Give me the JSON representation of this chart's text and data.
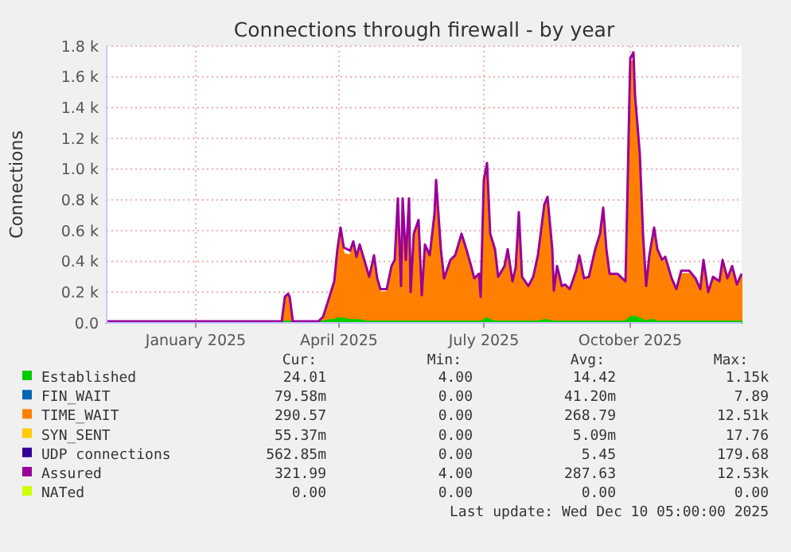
{
  "chart_data": {
    "type": "area",
    "title": "Connections through firewall - by year",
    "ylabel": "Connections",
    "grid": true,
    "legend": "bottom",
    "xlim": [
      "2024-11-06",
      "2025-12-10"
    ],
    "xticks": [
      {
        "value": "2025-01-01",
        "label": "January 2025"
      },
      {
        "value": "2025-04-01",
        "label": "April 2025"
      },
      {
        "value": "2025-07-01",
        "label": "July 2025"
      },
      {
        "value": "2025-10-01",
        "label": "October 2025"
      }
    ],
    "ylim": [
      0,
      1800
    ],
    "yticks": [
      {
        "value": 0,
        "label": "0.0"
      },
      {
        "value": 200,
        "label": "0.2 k"
      },
      {
        "value": 400,
        "label": "0.4 k"
      },
      {
        "value": 600,
        "label": "0.6 k"
      },
      {
        "value": 800,
        "label": "0.8 k"
      },
      {
        "value": 1000,
        "label": "1.0 k"
      },
      {
        "value": 1200,
        "label": "1.2 k"
      },
      {
        "value": 1400,
        "label": "1.4 k"
      },
      {
        "value": 1600,
        "label": "1.6 k"
      },
      {
        "value": 1800,
        "label": "1.8 k"
      }
    ],
    "x": [
      "2024-11-06",
      "2025-02-24",
      "2025-02-26",
      "2025-02-28",
      "2025-03-01",
      "2025-03-03",
      "2025-03-19",
      "2025-03-22",
      "2025-03-26",
      "2025-03-29",
      "2025-03-31",
      "2025-04-02",
      "2025-04-04",
      "2025-04-08",
      "2025-04-10",
      "2025-04-12",
      "2025-04-14",
      "2025-04-18",
      "2025-04-20",
      "2025-04-23",
      "2025-04-25",
      "2025-04-27",
      "2025-05-01",
      "2025-05-04",
      "2025-05-06",
      "2025-05-08",
      "2025-05-10",
      "2025-05-11",
      "2025-05-13",
      "2025-05-15",
      "2025-05-16",
      "2025-05-18",
      "2025-05-21",
      "2025-05-23",
      "2025-05-25",
      "2025-05-28",
      "2025-05-31",
      "2025-06-01",
      "2025-06-04",
      "2025-06-06",
      "2025-06-10",
      "2025-06-13",
      "2025-06-17",
      "2025-06-20",
      "2025-06-23",
      "2025-06-25",
      "2025-06-28",
      "2025-06-29",
      "2025-07-01",
      "2025-07-03",
      "2025-07-05",
      "2025-07-08",
      "2025-07-10",
      "2025-07-14",
      "2025-07-16",
      "2025-07-19",
      "2025-07-21",
      "2025-07-23",
      "2025-07-25",
      "2025-07-29",
      "2025-08-01",
      "2025-08-04",
      "2025-08-08",
      "2025-08-10",
      "2025-08-13",
      "2025-08-14",
      "2025-08-16",
      "2025-08-19",
      "2025-08-21",
      "2025-08-24",
      "2025-08-28",
      "2025-08-30",
      "2025-09-02",
      "2025-09-05",
      "2025-09-09",
      "2025-09-12",
      "2025-09-14",
      "2025-09-16",
      "2025-09-18",
      "2025-09-23",
      "2025-09-28",
      "2025-09-29",
      "2025-10-01",
      "2025-10-03",
      "2025-10-04",
      "2025-10-07",
      "2025-10-09",
      "2025-10-11",
      "2025-10-13",
      "2025-10-16",
      "2025-10-18",
      "2025-10-21",
      "2025-10-23",
      "2025-10-27",
      "2025-10-30",
      "2025-11-02",
      "2025-11-07",
      "2025-11-11",
      "2025-11-14",
      "2025-11-16",
      "2025-11-19",
      "2025-11-22",
      "2025-11-26",
      "2025-11-28",
      "2025-12-01",
      "2025-12-04",
      "2025-12-07",
      "2025-12-10"
    ],
    "series": [
      {
        "name": "Established",
        "color": "#00cc00",
        "values": [
          10,
          10,
          10,
          10,
          10,
          10,
          10,
          10,
          20,
          20,
          30,
          30,
          30,
          20,
          20,
          20,
          20,
          10,
          10,
          10,
          10,
          10,
          10,
          10,
          10,
          10,
          10,
          10,
          10,
          10,
          10,
          10,
          10,
          10,
          10,
          10,
          10,
          10,
          10,
          10,
          10,
          10,
          10,
          10,
          10,
          10,
          10,
          10,
          20,
          30,
          20,
          10,
          10,
          10,
          10,
          10,
          10,
          10,
          10,
          10,
          10,
          10,
          20,
          20,
          10,
          10,
          10,
          10,
          10,
          10,
          10,
          10,
          10,
          10,
          10,
          10,
          10,
          10,
          10,
          10,
          10,
          20,
          40,
          40,
          40,
          30,
          20,
          10,
          20,
          20,
          10,
          10,
          10,
          10,
          10,
          10,
          10,
          10,
          10,
          10,
          10,
          10,
          10,
          10,
          10,
          10,
          10,
          10
        ]
      },
      {
        "name": "FIN_WAIT",
        "color": "#0066b3",
        "values": [
          null,
          null,
          null,
          null,
          null,
          null,
          null,
          null,
          null,
          null,
          null,
          null,
          null,
          null,
          null,
          null,
          null,
          null,
          null,
          null,
          null,
          null,
          null,
          null,
          null,
          null,
          null,
          null,
          null,
          null,
          null,
          null,
          null,
          null,
          null,
          null,
          null,
          null,
          null,
          null,
          null,
          null,
          null,
          null,
          null,
          null,
          null,
          null,
          null,
          null,
          null,
          null,
          null,
          null,
          null,
          null,
          null,
          null,
          null,
          null,
          null,
          null,
          null,
          null,
          null,
          null,
          null,
          null,
          null,
          null,
          null,
          null,
          null,
          null,
          null,
          null,
          null,
          null,
          null,
          null,
          null,
          null,
          null,
          null,
          null,
          null,
          null,
          null,
          null,
          null,
          null,
          null,
          null,
          null,
          null,
          null,
          null,
          null,
          null,
          null,
          null,
          null,
          null,
          null,
          null,
          null,
          null,
          null
        ]
      },
      {
        "name": "TIME_WAIT",
        "color": "#ff8000",
        "values": [
          0,
          0,
          150,
          180,
          150,
          0,
          0,
          20,
          140,
          240,
          440,
          580,
          450,
          440,
          500,
          400,
          480,
          360,
          290,
          430,
          270,
          200,
          200,
          360,
          390,
          790,
          220,
          790,
          390,
          790,
          180,
          560,
          650,
          170,
          490,
          430,
          700,
          910,
          460,
          270,
          390,
          430,
          560,
          460,
          360,
          270,
          310,
          150,
          900,
          1010,
          560,
          460,
          290,
          360,
          460,
          260,
          340,
          700,
          290,
          220,
          290,
          430,
          750,
          800,
          460,
          190,
          360,
          220,
          240,
          200,
          320,
          430,
          270,
          290,
          460,
          560,
          740,
          460,
          310,
          310,
          250,
          700,
          1680,
          1710,
          1440,
          1070,
          560,
          220,
          420,
          600,
          460,
          390,
          410,
          270,
          200,
          320,
          320,
          270,
          200,
          390,
          190,
          290,
          250,
          390,
          270,
          360,
          240,
          310
        ]
      },
      {
        "name": "SYN_SENT",
        "color": "#ffcc00",
        "values": [
          null,
          null,
          null,
          null,
          null,
          null,
          null,
          null,
          null,
          null,
          null,
          null,
          null,
          null,
          null,
          null,
          null,
          null,
          null,
          null,
          null,
          null,
          null,
          null,
          null,
          null,
          null,
          null,
          null,
          null,
          null,
          null,
          null,
          null,
          null,
          null,
          null,
          null,
          null,
          null,
          null,
          null,
          null,
          null,
          null,
          null,
          null,
          null,
          null,
          null,
          null,
          null,
          null,
          null,
          null,
          null,
          null,
          null,
          null,
          null,
          null,
          null,
          null,
          null,
          null,
          null,
          null,
          null,
          null,
          null,
          null,
          null,
          null,
          null,
          null,
          null,
          null,
          null,
          null,
          null,
          null,
          null,
          null,
          null,
          null,
          null,
          null,
          null,
          null,
          null,
          null,
          null,
          null,
          null,
          null,
          null,
          null,
          null,
          null,
          null,
          null,
          null,
          null,
          null,
          null,
          null,
          null,
          null
        ]
      },
      {
        "name": "UDP connections",
        "color": "#330099",
        "values": [
          null,
          null,
          null,
          null,
          null,
          null,
          null,
          null,
          null,
          null,
          null,
          null,
          null,
          null,
          null,
          null,
          null,
          null,
          null,
          null,
          null,
          null,
          null,
          null,
          null,
          null,
          null,
          null,
          null,
          null,
          null,
          null,
          null,
          null,
          null,
          null,
          null,
          null,
          null,
          null,
          null,
          null,
          null,
          null,
          null,
          null,
          null,
          null,
          null,
          null,
          null,
          null,
          null,
          null,
          null,
          null,
          null,
          null,
          null,
          null,
          null,
          null,
          null,
          null,
          null,
          null,
          null,
          null,
          null,
          null,
          null,
          null,
          null,
          null,
          null,
          null,
          null,
          null,
          null,
          null,
          null,
          null,
          null,
          null,
          null,
          null,
          null,
          null,
          null,
          null,
          null,
          null,
          null,
          null,
          null,
          null,
          null,
          null,
          null,
          null,
          null,
          null,
          null,
          null,
          null,
          null,
          null,
          null
        ]
      },
      {
        "name": "Assured",
        "color": "#990099",
        "type": "line",
        "values": [
          10,
          10,
          170,
          190,
          170,
          10,
          10,
          40,
          170,
          270,
          480,
          620,
          490,
          470,
          530,
          430,
          510,
          370,
          300,
          440,
          290,
          220,
          220,
          370,
          410,
          810,
          240,
          810,
          410,
          810,
          200,
          580,
          670,
          180,
          510,
          440,
          710,
          930,
          480,
          290,
          410,
          440,
          580,
          480,
          370,
          290,
          320,
          170,
          930,
          1040,
          580,
          480,
          300,
          370,
          480,
          270,
          360,
          720,
          300,
          240,
          300,
          440,
          770,
          820,
          480,
          210,
          370,
          240,
          250,
          220,
          340,
          440,
          290,
          300,
          480,
          580,
          750,
          480,
          320,
          320,
          270,
          720,
          1720,
          1760,
          1480,
          1100,
          580,
          240,
          440,
          620,
          480,
          410,
          430,
          290,
          220,
          340,
          340,
          290,
          220,
          410,
          200,
          300,
          270,
          410,
          290,
          370,
          250,
          320
        ]
      },
      {
        "name": "NATed",
        "color": "#ccff00",
        "type": "line",
        "values": [
          null,
          null,
          null,
          null,
          null,
          null,
          null,
          null,
          null,
          null,
          null,
          null,
          null,
          null,
          null,
          null,
          null,
          null,
          null,
          null,
          null,
          null,
          null,
          null,
          null,
          null,
          null,
          null,
          null,
          null,
          null,
          null,
          null,
          null,
          null,
          null,
          null,
          null,
          null,
          null,
          null,
          null,
          null,
          null,
          null,
          null,
          null,
          null,
          null,
          null,
          null,
          null,
          null,
          null,
          null,
          null,
          null,
          null,
          null,
          null,
          null,
          null,
          null,
          null,
          null,
          null,
          null,
          null,
          null,
          null,
          null,
          null,
          null,
          null,
          null,
          null,
          null,
          null,
          null,
          null,
          null,
          null,
          null,
          null,
          null,
          null,
          null,
          null,
          null,
          null,
          null,
          null,
          null,
          null,
          null,
          null,
          null,
          null,
          null,
          null,
          null,
          null,
          null,
          null,
          null,
          null,
          null,
          null
        ]
      }
    ],
    "annotations": [
      "Cur:",
      "Min:",
      "Avg:",
      "Max:",
      "24.01",
      "4.00",
      "14.42",
      "1.15k",
      "79.58m",
      "0.00",
      "41.20m",
      "7.89",
      "290.57",
      "0.00",
      "268.79",
      "12.51k",
      "55.37m",
      "0.00",
      "5.09m",
      "17.76",
      "562.85m",
      "0.00",
      "5.45",
      "179.68",
      "321.99",
      "4.00",
      "287.63",
      "12.53k",
      "0.00",
      "0.00",
      "0.00",
      "0.00",
      "Last update: Wed Dec 10 05:00:00 2025"
    ]
  }
}
